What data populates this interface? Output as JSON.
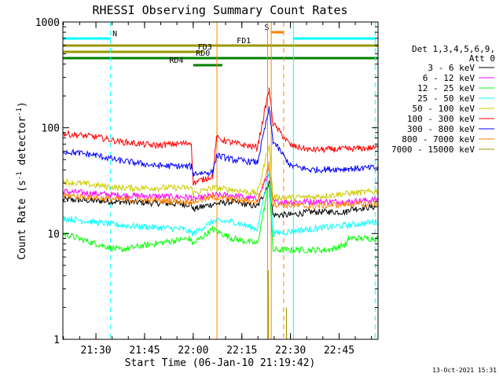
{
  "chart_data": {
    "type": "line",
    "title": "RHESSI Observing Summary Count Rates",
    "xlabel": "Start Time (06-Jan-10 21:19:42)",
    "ylabel_main": "Count Rate (s",
    "ylabel_sup1": "-1",
    "ylabel_mid": " detector",
    "ylabel_sup2": "-1",
    "ylabel_end": ")",
    "yscale": "log",
    "ylim": [
      1,
      1000
    ],
    "xlim": [
      21.33,
      22.95
    ],
    "x_ticks": [
      {
        "t": 21.5,
        "label": "21:30"
      },
      {
        "t": 21.75,
        "label": "21:45"
      },
      {
        "t": 22.0,
        "label": "22:00"
      },
      {
        "t": 22.25,
        "label": "22:15"
      },
      {
        "t": 22.5,
        "label": "22:30"
      },
      {
        "t": 22.75,
        "label": "22:45"
      }
    ],
    "y_ticks": [
      {
        "v": 1,
        "label": "1"
      },
      {
        "v": 10,
        "label": "10"
      },
      {
        "v": 100,
        "label": "100"
      },
      {
        "v": 1000,
        "label": "1000"
      }
    ],
    "grid": false,
    "legend_position": "right",
    "legend_header": [
      "Det 1,3,4,5,6,9,",
      "Att 0"
    ],
    "series": [
      {
        "name": "3 - 6 keV",
        "color": "#000000",
        "points": [
          [
            21.33,
            21
          ],
          [
            21.62,
            20
          ],
          [
            21.95,
            19
          ],
          [
            21.99,
            19
          ],
          [
            22.0,
            17
          ],
          [
            22.1,
            19
          ],
          [
            22.2,
            20
          ],
          [
            22.33,
            18
          ],
          [
            22.39,
            30
          ],
          [
            22.41,
            15
          ],
          [
            22.5,
            15
          ],
          [
            22.6,
            16
          ],
          [
            22.7,
            16
          ],
          [
            22.79,
            16
          ],
          [
            22.8,
            17
          ],
          [
            22.95,
            18
          ]
        ]
      },
      {
        "name": "6 - 12 keV",
        "color": "#ff00ff",
        "points": [
          [
            21.33,
            25
          ],
          [
            21.62,
            23
          ],
          [
            21.99,
            22
          ],
          [
            22.0,
            21
          ],
          [
            22.1,
            23
          ],
          [
            22.2,
            23
          ],
          [
            22.33,
            21
          ],
          [
            22.39,
            38
          ],
          [
            22.41,
            20
          ],
          [
            22.6,
            20
          ],
          [
            22.8,
            20
          ],
          [
            22.95,
            21
          ]
        ]
      },
      {
        "name": "12 - 25 keV",
        "color": "#00ff00",
        "points": [
          [
            21.33,
            10
          ],
          [
            21.5,
            8
          ],
          [
            21.62,
            7
          ],
          [
            21.8,
            8
          ],
          [
            21.98,
            9
          ],
          [
            22.0,
            8
          ],
          [
            22.1,
            11
          ],
          [
            22.2,
            9
          ],
          [
            22.33,
            8
          ],
          [
            22.39,
            30
          ],
          [
            22.41,
            7
          ],
          [
            22.55,
            7
          ],
          [
            22.7,
            7
          ],
          [
            22.79,
            8
          ],
          [
            22.8,
            9
          ],
          [
            22.95,
            9
          ]
        ]
      },
      {
        "name": "25 - 50 keV",
        "color": "#00ffff",
        "points": [
          [
            21.33,
            14
          ],
          [
            21.62,
            12
          ],
          [
            21.95,
            11
          ],
          [
            22.0,
            10
          ],
          [
            22.1,
            13
          ],
          [
            22.2,
            13
          ],
          [
            22.33,
            11
          ],
          [
            22.39,
            40
          ],
          [
            22.41,
            10
          ],
          [
            22.6,
            11
          ],
          [
            22.79,
            12
          ],
          [
            22.8,
            12
          ],
          [
            22.95,
            13
          ]
        ]
      },
      {
        "name": "50 - 100 keV",
        "color": "#cccc00",
        "points": [
          [
            21.33,
            31
          ],
          [
            21.62,
            27
          ],
          [
            21.99,
            27
          ],
          [
            22.0,
            24
          ],
          [
            22.1,
            27
          ],
          [
            22.2,
            26
          ],
          [
            22.33,
            24
          ],
          [
            22.39,
            70
          ],
          [
            22.41,
            22
          ],
          [
            22.6,
            22
          ],
          [
            22.8,
            24
          ],
          [
            22.95,
            25
          ]
        ]
      },
      {
        "name": "100 - 300 keV",
        "color": "#ff0000",
        "points": [
          [
            21.33,
            88
          ],
          [
            21.5,
            82
          ],
          [
            21.62,
            74
          ],
          [
            21.8,
            68
          ],
          [
            21.99,
            72
          ],
          [
            22.0,
            30
          ],
          [
            22.1,
            35
          ],
          [
            22.12,
            80
          ],
          [
            22.2,
            72
          ],
          [
            22.33,
            65
          ],
          [
            22.39,
            230
          ],
          [
            22.41,
            110
          ],
          [
            22.5,
            68
          ],
          [
            22.6,
            62
          ],
          [
            22.8,
            63
          ],
          [
            22.95,
            65
          ]
        ]
      },
      {
        "name": "300 - 800 keV",
        "color": "#0000ff",
        "points": [
          [
            21.33,
            60
          ],
          [
            21.5,
            55
          ],
          [
            21.62,
            49
          ],
          [
            21.8,
            44
          ],
          [
            21.99,
            43
          ],
          [
            22.0,
            37
          ],
          [
            22.1,
            38
          ],
          [
            22.12,
            55
          ],
          [
            22.2,
            50
          ],
          [
            22.33,
            47
          ],
          [
            22.39,
            150
          ],
          [
            22.41,
            75
          ],
          [
            22.5,
            44
          ],
          [
            22.6,
            40
          ],
          [
            22.8,
            41
          ],
          [
            22.95,
            42
          ]
        ]
      },
      {
        "name": "800 - 7000 keV",
        "color": "#ff8000",
        "points": [
          [
            21.33,
            23
          ],
          [
            21.62,
            21
          ],
          [
            21.99,
            20
          ],
          [
            22.0,
            20
          ],
          [
            22.1,
            22
          ],
          [
            22.12,
            22
          ],
          [
            22.2,
            21
          ],
          [
            22.33,
            20
          ],
          [
            22.39,
            45
          ],
          [
            22.41,
            19
          ],
          [
            22.6,
            18
          ],
          [
            22.8,
            19
          ],
          [
            22.95,
            19
          ]
        ]
      },
      {
        "name": "7000 - 15000 keV",
        "color": "#999900",
        "points": [
          [
            22.386,
            1
          ],
          [
            22.386,
            4.5
          ],
          [
            22.387,
            1
          ],
          [
            22.479,
            1
          ],
          [
            22.479,
            2
          ],
          [
            22.48,
            1
          ]
        ]
      }
    ],
    "vlines": [
      {
        "t": 21.33,
        "color": "#00ffff",
        "dash": false
      },
      {
        "t": 21.575,
        "color": "#00ffff",
        "dash": true
      },
      {
        "t": 22.515,
        "color": "#00ffff",
        "dash": false
      },
      {
        "t": 22.935,
        "color": "#00ffff",
        "dash": true
      },
      {
        "t": 22.122,
        "color": "#ff8000",
        "dash": false
      },
      {
        "t": 22.382,
        "color": "#ff8000",
        "dash": false
      },
      {
        "t": 22.401,
        "color": "#ff8000",
        "dash": false
      },
      {
        "t": 22.465,
        "color": "#ff8000",
        "dash": true
      }
    ],
    "state_bars": [
      {
        "label": "N",
        "color": "#00ffff",
        "level": 1,
        "segments": [
          [
            21.33,
            21.575
          ],
          [
            22.515,
            22.935
          ]
        ],
        "label_at": 21.585,
        "label_side": "right"
      },
      {
        "label": "S",
        "color": "#ff8000",
        "level": 0,
        "segments": [
          [
            22.401,
            22.465
          ]
        ],
        "label_at": 22.39,
        "label_side": "left"
      },
      {
        "label": "FD1",
        "color": "#999900",
        "level": 2,
        "segments": [
          [
            21.33,
            22.95
          ]
        ],
        "label_at": 22.26,
        "label_side": "mid"
      },
      {
        "label": "FD3",
        "color": "#999900",
        "level": 3,
        "segments": [
          [
            21.33,
            22.05
          ]
        ],
        "label_at": 22.06,
        "label_side": "mid"
      },
      {
        "label": "RD0",
        "color": "#008000",
        "level": 4,
        "segments": [
          [
            21.33,
            22.95
          ]
        ],
        "label_at": 22.05,
        "label_side": "mid"
      },
      {
        "label": "RD4",
        "color": "#008000",
        "level": 5,
        "segments": [
          [
            22.0,
            22.15
          ]
        ],
        "label_at": 21.95,
        "label_side": "left"
      }
    ],
    "timestamp": "13-Oct-2021 15:31"
  }
}
